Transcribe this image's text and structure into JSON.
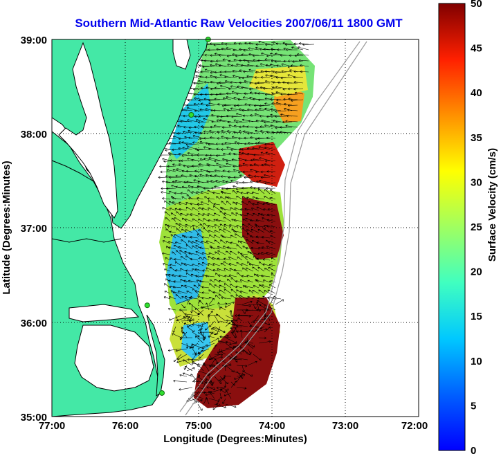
{
  "title": "Southern Mid-Atlantic Raw Velocities 2007/06/11 1800 GMT",
  "map": {
    "xlabel": "Longitude (Degrees:Minutes)",
    "ylabel": "Latitude (Degrees:Minutes)",
    "x_ticks": [
      "77:00",
      "76:00",
      "75:00",
      "74:00",
      "73:00",
      "72:00"
    ],
    "y_ticks": [
      "39:00",
      "38:00",
      "37:00",
      "36:00",
      "35:00"
    ],
    "lon_range": [
      -77,
      -72
    ],
    "lat_range": [
      35,
      39
    ],
    "grid": true,
    "land_color": "#44e8a6",
    "coast_color": "#000000",
    "stations": [
      {
        "lon": -74.87,
        "lat": 39.0
      },
      {
        "lon": -75.1,
        "lat": 38.2
      },
      {
        "lon": -75.7,
        "lat": 36.18
      },
      {
        "lon": -75.5,
        "lat": 35.25
      }
    ]
  },
  "colorbar": {
    "label": "Surface Velocity (cm/s)",
    "ticks": [
      "0",
      "5",
      "10",
      "15",
      "20",
      "25",
      "30",
      "35",
      "40",
      "45",
      "50"
    ],
    "range": [
      0,
      50
    ],
    "colormap": "jet"
  }
}
